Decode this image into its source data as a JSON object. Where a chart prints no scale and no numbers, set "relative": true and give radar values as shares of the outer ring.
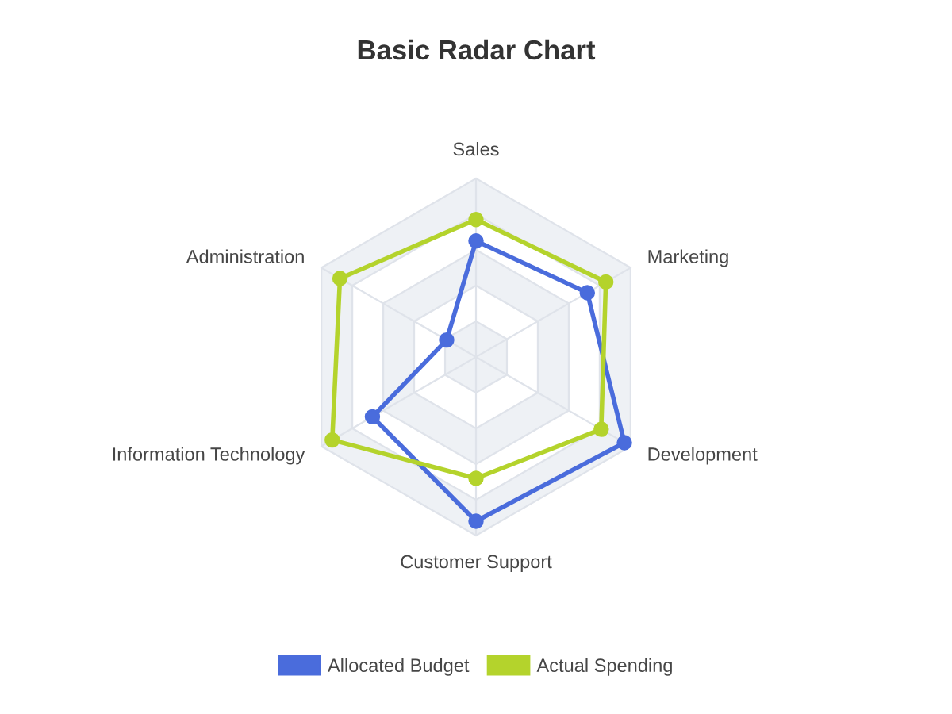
{
  "chart_data": {
    "type": "radar",
    "title": "Basic Radar Chart",
    "categories": [
      "Sales",
      "Marketing",
      "Development",
      "Customer Support",
      "Information Technology",
      "Administration"
    ],
    "relative": true,
    "series": [
      {
        "name": "Allocated Budget",
        "color": "#4a6cdc",
        "values": [
          0.65,
          0.72,
          0.96,
          0.92,
          0.67,
          0.19
        ]
      },
      {
        "name": "Actual Spending",
        "color": "#b4d32c",
        "values": [
          0.77,
          0.84,
          0.81,
          0.68,
          0.93,
          0.88
        ]
      }
    ],
    "grid": true,
    "legend": "bottom",
    "marker": "circle",
    "line_style": "solid"
  }
}
